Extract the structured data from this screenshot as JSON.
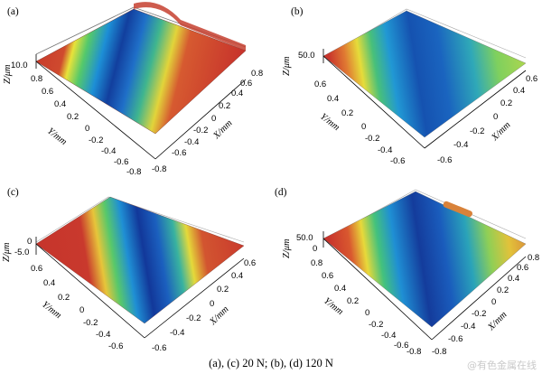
{
  "caption": "(a), (c) 20 N; (b), (d) 120 N",
  "watermark": "@有色金属在线",
  "colors": {
    "surface_red": "#c8342c",
    "surface_orange": "#d8823a",
    "axis": "#000000"
  },
  "panels": [
    {
      "label": "(a)",
      "z_label": "Z/μm",
      "z_tick": "10.0",
      "y_label": "Y/mm",
      "x_label": "X/mm",
      "y_ticks": [
        "0.8",
        "0.6",
        "0.4",
        "0.2",
        "0",
        "-0.2",
        "-0.4",
        "-0.6",
        "-0.8"
      ],
      "x_ticks": [
        "-0.8",
        "-0.6",
        "-0.4",
        "-0.2",
        "0",
        "0.2",
        "0.4",
        "0.6",
        "0.8"
      ],
      "surface": "red"
    },
    {
      "label": "(b)",
      "z_label": "Z/μm",
      "z_tick": "50.0",
      "y_label": "Y/mm",
      "x_label": "X/mm",
      "y_ticks": [
        "0.6",
        "0.4",
        "0.2",
        "0",
        "-0.2",
        "-0.4",
        "-0.6"
      ],
      "x_ticks": [
        "-0.6",
        "-0.4",
        "-0.2",
        "0",
        "0.2",
        "0.4",
        "0.6"
      ],
      "surface": "red"
    },
    {
      "label": "(c)",
      "z_label": "Z/μm",
      "z_tick": "0",
      "z_tick2": "-5.0",
      "y_label": "Y/mm",
      "x_label": "X/mm",
      "y_ticks": [
        "0.6",
        "0.4",
        "0.2",
        "0",
        "-0.2",
        "-0.4",
        "-0.6"
      ],
      "x_ticks": [
        "-0.6",
        "-0.4",
        "-0.2",
        "0",
        "0.2",
        "0.4",
        "0.6"
      ],
      "surface": "red"
    },
    {
      "label": "(d)",
      "z_label": "Z/μm",
      "z_tick": "50.0",
      "z_tick2": "0",
      "y_label": "Y/mm",
      "x_label": "X/mm",
      "y_ticks": [
        "0.8",
        "0.6",
        "0.4",
        "0.2",
        "0",
        "-0.2",
        "-0.4",
        "-0.6",
        "-0.8"
      ],
      "x_ticks": [
        "-0.8",
        "-0.6",
        "-0.4",
        "-0.2",
        "0",
        "0.2",
        "0.4",
        "0.6",
        "0.8"
      ],
      "surface": "orange"
    }
  ]
}
